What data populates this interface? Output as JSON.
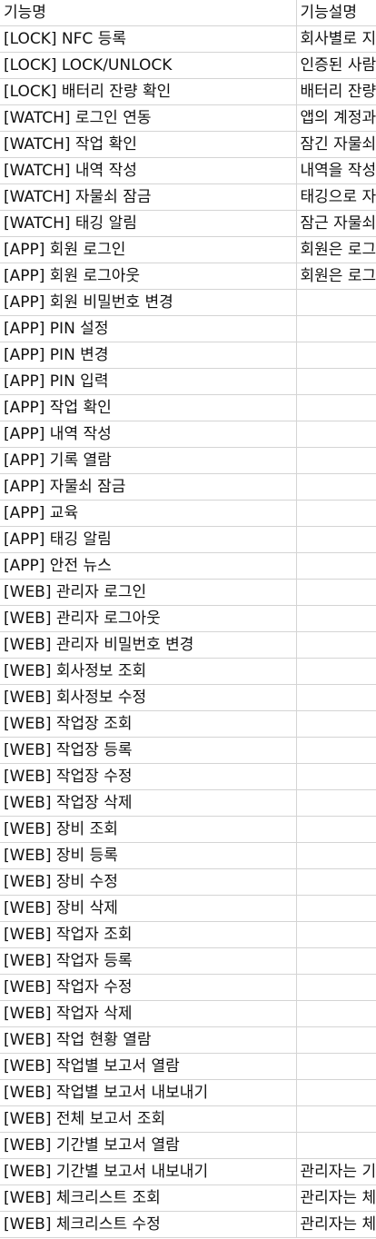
{
  "sheet": {
    "header": {
      "name": "기능명",
      "description": "기능설명"
    },
    "rows": [
      {
        "name": "[LOCK] NFC 등록",
        "description": "회사별로 지"
      },
      {
        "name": "[LOCK] LOCK/UNLOCK",
        "description": "인증된 사람"
      },
      {
        "name": "[LOCK] 배터리 잔량 확인",
        "description": "배터리 잔량"
      },
      {
        "name": "[WATCH] 로그인 연동",
        "description": "앱의 계정과"
      },
      {
        "name": "[WATCH] 작업 확인",
        "description": "잠긴 자물쇠"
      },
      {
        "name": "[WATCH] 내역 작성",
        "description": "내역을 작성"
      },
      {
        "name": "[WATCH] 자물쇠 잠금",
        "description": "태깅으로 자"
      },
      {
        "name": "[WATCH] 태깅 알림",
        "description": "잠근 자물쇠"
      },
      {
        "name": "[APP] 회원 로그인",
        "description": "회원은 로그"
      },
      {
        "name": "[APP] 회원 로그아웃",
        "description": "회원은 로그"
      },
      {
        "name": "[APP] 회원 비밀번호 변경",
        "description": ""
      },
      {
        "name": "[APP] PIN 설정",
        "description": ""
      },
      {
        "name": "[APP] PIN 변경",
        "description": ""
      },
      {
        "name": "[APP] PIN 입력",
        "description": ""
      },
      {
        "name": "[APP] 작업 확인",
        "description": ""
      },
      {
        "name": "[APP] 내역 작성",
        "description": ""
      },
      {
        "name": "[APP] 기록 열람",
        "description": ""
      },
      {
        "name": "[APP] 자물쇠 잠금",
        "description": ""
      },
      {
        "name": "[APP] 교육",
        "description": ""
      },
      {
        "name": "[APP] 태깅 알림",
        "description": ""
      },
      {
        "name": "[APP] 안전 뉴스",
        "description": ""
      },
      {
        "name": "[WEB] 관리자 로그인",
        "description": ""
      },
      {
        "name": "[WEB] 관리자 로그아웃",
        "description": ""
      },
      {
        "name": "[WEB] 관리자 비밀번호 변경",
        "description": ""
      },
      {
        "name": "[WEB] 회사정보 조회",
        "description": ""
      },
      {
        "name": "[WEB] 회사정보 수정",
        "description": ""
      },
      {
        "name": "[WEB] 작업장 조회",
        "description": ""
      },
      {
        "name": "[WEB] 작업장 등록",
        "description": ""
      },
      {
        "name": "[WEB] 작업장 수정",
        "description": ""
      },
      {
        "name": "[WEB] 작업장 삭제",
        "description": ""
      },
      {
        "name": "[WEB] 장비 조회",
        "description": ""
      },
      {
        "name": "[WEB] 장비 등록",
        "description": ""
      },
      {
        "name": "[WEB] 장비 수정",
        "description": ""
      },
      {
        "name": "[WEB] 장비 삭제",
        "description": ""
      },
      {
        "name": "[WEB] 작업자 조회",
        "description": ""
      },
      {
        "name": "[WEB] 작업자 등록",
        "description": ""
      },
      {
        "name": "[WEB] 작업자 수정",
        "description": ""
      },
      {
        "name": "[WEB] 작업자 삭제",
        "description": ""
      },
      {
        "name": "[WEB] 작업 현황 열람",
        "description": ""
      },
      {
        "name": "[WEB] 작업별 보고서 열람",
        "description": ""
      },
      {
        "name": "[WEB] 작업별 보고서 내보내기",
        "description": ""
      },
      {
        "name": "[WEB] 전체 보고서 조회",
        "description": ""
      },
      {
        "name": "[WEB] 기간별 보고서 열람",
        "description": ""
      },
      {
        "name": "[WEB] 기간별 보고서 내보내기",
        "description": "관리자는 기"
      },
      {
        "name": "[WEB] 체크리스트 조회",
        "description": "관리자는 체"
      },
      {
        "name": "[WEB] 체크리스트 수정",
        "description": "관리자는 체"
      }
    ]
  }
}
